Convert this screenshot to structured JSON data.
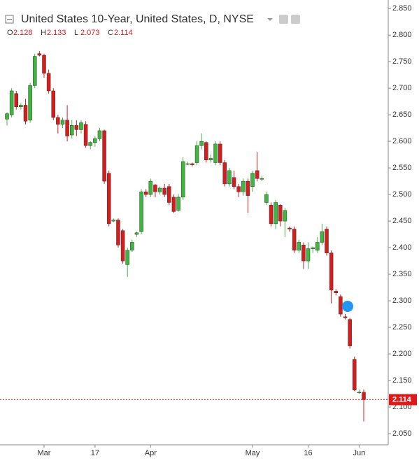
{
  "chart_data": {
    "type": "candlestick",
    "title": "United States 10-Year, United States, D, NYSE",
    "ohlc_legend": [
      {
        "label": "O",
        "value": 2.128
      },
      {
        "label": "H",
        "value": 2.133
      },
      {
        "label": "L",
        "value": 2.073
      },
      {
        "label": "C",
        "value": 2.114
      }
    ],
    "categories": [
      null,
      null,
      null,
      null,
      null,
      null,
      null,
      null,
      "Mar",
      null,
      null,
      null,
      null,
      null,
      null,
      null,
      null,
      null,
      null,
      "17",
      null,
      null,
      null,
      null,
      null,
      null,
      null,
      null,
      null,
      null,
      null,
      "Apr",
      null,
      null,
      null,
      null,
      null,
      null,
      null,
      null,
      null,
      null,
      null,
      null,
      null,
      null,
      null,
      null,
      null,
      null,
      null,
      null,
      null,
      "May",
      null,
      null,
      null,
      null,
      null,
      null,
      null,
      null,
      null,
      null,
      null,
      "16",
      null,
      null,
      null,
      null,
      null,
      null,
      null,
      null,
      null,
      null,
      "Jun",
      null
    ],
    "open": [
      2.642,
      2.65,
      2.69,
      2.665,
      2.668,
      2.64,
      2.705,
      2.765,
      2.762,
      2.728,
      2.695,
      2.645,
      2.632,
      2.64,
      2.612,
      2.63,
      2.622,
      2.632,
      2.592,
      2.598,
      2.605,
      2.62,
      2.54,
      2.45,
      2.452,
      2.432,
      2.368,
      2.395,
      2.425,
      2.43,
      2.505,
      2.5,
      2.518,
      2.505,
      2.512,
      2.515,
      2.495,
      2.47,
      2.495,
      2.558,
      2.558,
      2.56,
      2.592,
      2.598,
      2.565,
      2.56,
      2.595,
      2.56,
      2.52,
      2.532,
      2.515,
      2.505,
      2.525,
      2.515,
      2.545,
      2.53,
      2.485,
      2.48,
      2.445,
      2.48,
      2.45,
      2.437,
      2.435,
      2.395,
      2.405,
      2.375,
      2.398,
      2.395,
      2.41,
      2.435,
      2.39,
      2.318,
      2.308,
      2.27,
      2.265,
      2.19,
      2.128,
      2.128
    ],
    "high": [
      2.655,
      2.7,
      2.695,
      2.672,
      2.68,
      2.71,
      2.765,
      2.77,
      2.765,
      2.735,
      2.7,
      2.65,
      2.645,
      2.668,
      2.64,
      2.64,
      2.64,
      2.638,
      2.6,
      2.61,
      2.625,
      2.622,
      2.545,
      2.455,
      2.455,
      2.435,
      2.4,
      2.415,
      2.43,
      2.51,
      2.51,
      2.53,
      2.52,
      2.515,
      2.52,
      2.52,
      2.5,
      2.5,
      2.57,
      2.562,
      2.56,
      2.6,
      2.615,
      2.6,
      2.575,
      2.6,
      2.6,
      2.565,
      2.55,
      2.545,
      2.52,
      2.53,
      2.53,
      2.545,
      2.58,
      2.535,
      2.505,
      2.485,
      2.49,
      2.482,
      2.475,
      2.44,
      2.44,
      2.415,
      2.41,
      2.41,
      2.402,
      2.42,
      2.445,
      2.44,
      2.395,
      2.322,
      2.312,
      2.275,
      2.268,
      2.195,
      2.133,
      2.133
    ],
    "low": [
      2.63,
      2.645,
      2.66,
      2.66,
      2.632,
      2.635,
      2.7,
      2.76,
      2.72,
      2.69,
      2.64,
      2.615,
      2.625,
      2.6,
      2.605,
      2.61,
      2.615,
      2.588,
      2.585,
      2.59,
      2.6,
      2.52,
      2.44,
      2.448,
      2.4,
      2.37,
      2.345,
      2.392,
      2.42,
      2.425,
      2.495,
      2.495,
      2.495,
      2.5,
      2.495,
      2.48,
      2.465,
      2.468,
      2.49,
      2.555,
      2.553,
      2.555,
      2.585,
      2.56,
      2.56,
      2.555,
      2.555,
      2.515,
      2.515,
      2.51,
      2.495,
      2.498,
      2.465,
      2.505,
      2.525,
      2.525,
      2.48,
      2.44,
      2.435,
      2.44,
      2.42,
      2.43,
      2.39,
      2.39,
      2.36,
      2.36,
      2.39,
      2.39,
      2.405,
      2.385,
      2.295,
      2.31,
      2.27,
      2.265,
      2.21,
      2.13,
      2.125,
      2.073
    ],
    "close": [
      2.652,
      2.695,
      2.665,
      2.668,
      2.638,
      2.705,
      2.76,
      2.762,
      2.728,
      2.695,
      2.645,
      2.632,
      2.64,
      2.61,
      2.63,
      2.622,
      2.635,
      2.592,
      2.598,
      2.605,
      2.62,
      2.525,
      2.445,
      2.452,
      2.405,
      2.375,
      2.395,
      2.41,
      2.428,
      2.505,
      2.5,
      2.525,
      2.505,
      2.512,
      2.5,
      2.485,
      2.468,
      2.495,
      2.562,
      2.558,
      2.556,
      2.592,
      2.6,
      2.565,
      2.568,
      2.595,
      2.56,
      2.52,
      2.545,
      2.515,
      2.505,
      2.525,
      2.498,
      2.54,
      2.53,
      2.53,
      2.5,
      2.445,
      2.485,
      2.45,
      2.47,
      2.435,
      2.395,
      2.41,
      2.375,
      2.398,
      2.4,
      2.41,
      2.43,
      2.39,
      2.32,
      2.315,
      2.275,
      2.268,
      2.215,
      2.132,
      2.128,
      2.114
    ],
    "up_color": "#3cb93c",
    "down_color": "#d81c1c",
    "ylim": [
      2.029,
      2.866
    ],
    "yticks": [
      {
        "value": 2.05,
        "label": "2.050"
      },
      {
        "value": 2.1,
        "label": "2.100"
      },
      {
        "value": 2.15,
        "label": "2.150"
      },
      {
        "value": 2.2,
        "label": "2.200"
      },
      {
        "value": 2.25,
        "label": "2.250"
      },
      {
        "value": 2.3,
        "label": "2.300"
      },
      {
        "value": 2.35,
        "label": "2.350"
      },
      {
        "value": 2.4,
        "label": "2.400"
      },
      {
        "value": 2.45,
        "label": "2.450"
      },
      {
        "value": 2.5,
        "label": "2.500"
      },
      {
        "value": 2.55,
        "label": "2.550"
      },
      {
        "value": 2.6,
        "label": "2.600"
      },
      {
        "value": 2.65,
        "label": "2.650"
      },
      {
        "value": 2.7,
        "label": "2.700"
      },
      {
        "value": 2.75,
        "label": "2.750"
      },
      {
        "value": 2.8,
        "label": "2.800"
      },
      {
        "value": 2.85,
        "label": "2.850"
      }
    ],
    "last_price_color": "#e0191a"
  }
}
